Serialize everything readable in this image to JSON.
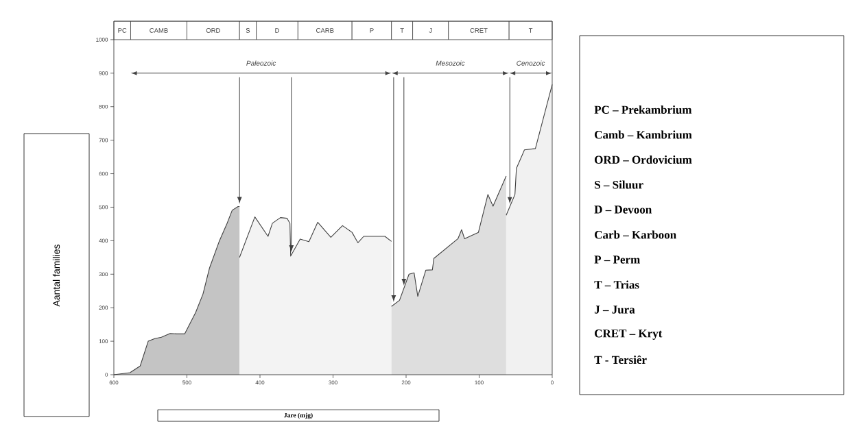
{
  "chart_data": {
    "type": "area",
    "xlabel": "Jare (mjg)",
    "ylabel": "Aantal families",
    "xlim": [
      600,
      0
    ],
    "ylim": [
      0,
      1055
    ],
    "xticks": [
      600,
      500,
      400,
      300,
      200,
      100,
      0
    ],
    "yticks": [
      0,
      100,
      200,
      300,
      400,
      500,
      600,
      700,
      800,
      900,
      1000
    ],
    "series": [
      {
        "color": "#c4c4c4",
        "x": [
          600,
          578,
          564,
          553,
          544,
          535,
          523,
          514,
          503,
          488,
          478,
          469,
          456,
          445,
          438,
          430,
          428
        ],
        "values": [
          0,
          6,
          26,
          100,
          108,
          112,
          123,
          122,
          122,
          186,
          241,
          319,
          397,
          452,
          491,
          502,
          502
        ]
      },
      {
        "color": "#f3f3f3",
        "x": [
          428,
          407,
          389,
          383,
          372,
          363,
          359,
          358,
          345,
          333,
          321,
          303,
          287,
          274,
          266,
          258,
          229,
          220
        ],
        "values": [
          350,
          471,
          413,
          452,
          469,
          467,
          452,
          354,
          405,
          397,
          455,
          410,
          445,
          425,
          394,
          413,
          413,
          398
        ]
      },
      {
        "color": "#dedede",
        "x": [
          220,
          209,
          196,
          189,
          184,
          173,
          164,
          162,
          129,
          124,
          120,
          101,
          88,
          81,
          63
        ],
        "values": [
          204,
          222,
          300,
          304,
          234,
          312,
          313,
          347,
          406,
          433,
          406,
          425,
          538,
          503,
          593
        ]
      },
      {
        "color": "#f1f1f1",
        "x": [
          63,
          51,
          49,
          38,
          23,
          0
        ],
        "values": [
          476,
          538,
          616,
          671,
          675,
          866
        ]
      }
    ],
    "bands": [
      {
        "axis": "x",
        "from": 600,
        "to": 577,
        "label": "PC",
        "color": "#ffffff"
      },
      {
        "axis": "x",
        "from": 577,
        "to": 500,
        "label": "CAMB",
        "color": "#ffffff"
      },
      {
        "axis": "x",
        "from": 500,
        "to": 428,
        "label": "ORD",
        "color": "#ffffff"
      },
      {
        "axis": "x",
        "from": 428,
        "to": 405,
        "label": "S",
        "color": "#ffffff"
      },
      {
        "axis": "x",
        "from": 405,
        "to": 348,
        "label": "D",
        "color": "#ffffff"
      },
      {
        "axis": "x",
        "from": 348,
        "to": 274,
        "label": "CARB",
        "color": "#ffffff"
      },
      {
        "axis": "x",
        "from": 274,
        "to": 220,
        "label": "P",
        "color": "#ffffff"
      },
      {
        "axis": "x",
        "from": 220,
        "to": 191,
        "label": "T",
        "color": "#ffffff"
      },
      {
        "axis": "x",
        "from": 191,
        "to": 142,
        "label": "J",
        "color": "#ffffff"
      },
      {
        "axis": "x",
        "from": 142,
        "to": 59,
        "label": "CRET",
        "color": "#ffffff"
      },
      {
        "axis": "x",
        "from": 59,
        "to": 0,
        "label": "T",
        "color": "#ffffff"
      }
    ],
    "ref_lines": [
      {
        "axis": "x",
        "value": 428
      },
      {
        "axis": "x",
        "value": 357
      },
      {
        "axis": "x",
        "value": 217
      },
      {
        "axis": "x",
        "value": 203
      },
      {
        "axis": "x",
        "value": 58
      }
    ],
    "annotations": [
      "Paleozoic",
      "Mesozoic",
      "Cenozoic",
      "PC – Prekambrium",
      "Camb – Kambrium",
      "ORD – Ordovicium",
      "S – Siluur",
      "D – Devoon",
      "Carb – Karboon",
      "P – Perm",
      "T – Trias",
      "J – Jura",
      "CRET – Kryt",
      "T - Tersiêr"
    ]
  }
}
